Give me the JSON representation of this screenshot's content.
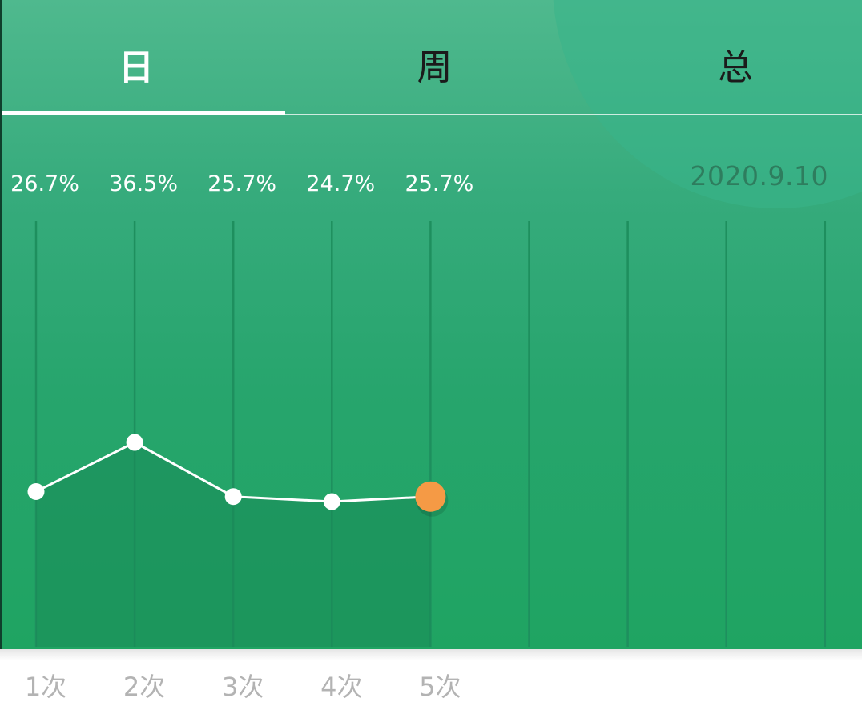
{
  "tabs": {
    "day": "日",
    "week": "周",
    "total": "总",
    "active": "day"
  },
  "date": "2020.9.10",
  "colors": {
    "line": "#ffffff",
    "point": "#ffffff",
    "highlight_point": "#f59a45",
    "gridline": "#1e8f5e",
    "area_fill": "#1a8a57"
  },
  "chart_data": {
    "type": "line",
    "categories": [
      "1次",
      "2次",
      "3次",
      "4次",
      "5次"
    ],
    "values": [
      26.7,
      36.5,
      25.7,
      24.7,
      25.7
    ],
    "value_labels": [
      "26.7%",
      "36.5%",
      "25.7%",
      "24.7%",
      "25.7%"
    ],
    "slot_count": 9,
    "highlight_index": 4,
    "title": "",
    "xlabel": "",
    "ylabel": "",
    "grid": true
  }
}
